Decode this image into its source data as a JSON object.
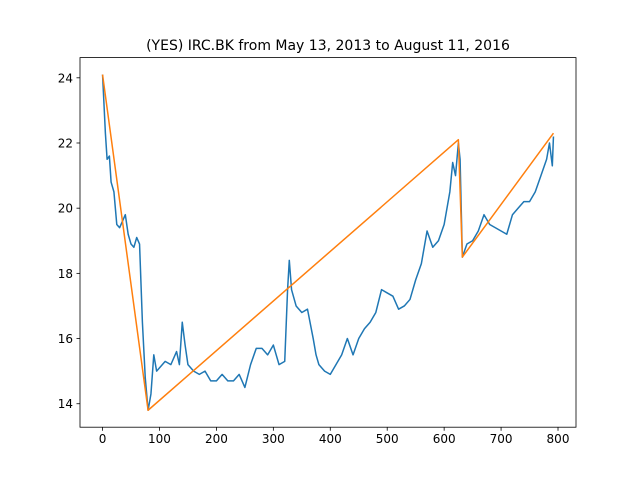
{
  "chart_data": {
    "type": "line",
    "title": "(YES) IRC.BK from May 13, 2013 to August 11, 2016",
    "xlim": [
      -39.6,
      831.6
    ],
    "ylim": [
      13.28,
      24.62
    ],
    "xticks": [
      0,
      100,
      200,
      300,
      400,
      500,
      600,
      700,
      800
    ],
    "yticks": [
      14,
      16,
      18,
      20,
      22,
      24
    ],
    "grid": false,
    "series": [
      {
        "color": "#1f77b4",
        "x": [
          0,
          5,
          8,
          12,
          15,
          20,
          25,
          30,
          35,
          40,
          45,
          50,
          55,
          60,
          65,
          70,
          75,
          80,
          85,
          90,
          95,
          100,
          110,
          120,
          130,
          135,
          140,
          145,
          150,
          160,
          170,
          180,
          190,
          200,
          210,
          220,
          230,
          240,
          250,
          260,
          270,
          280,
          290,
          300,
          310,
          320,
          325,
          328,
          332,
          340,
          350,
          360,
          370,
          375,
          380,
          390,
          400,
          410,
          420,
          430,
          440,
          450,
          460,
          470,
          480,
          490,
          500,
          510,
          520,
          530,
          540,
          550,
          560,
          570,
          580,
          590,
          600,
          610,
          615,
          620,
          625,
          628,
          632,
          640,
          650,
          660,
          670,
          680,
          690,
          700,
          710,
          720,
          730,
          740,
          750,
          760,
          770,
          780,
          785,
          790,
          792
        ],
        "values": [
          24.1,
          22.3,
          21.5,
          21.6,
          20.8,
          20.5,
          19.5,
          19.4,
          19.6,
          19.8,
          19.2,
          18.9,
          18.8,
          19.1,
          18.9,
          16.5,
          14.8,
          13.8,
          14.3,
          15.5,
          15.0,
          15.1,
          15.3,
          15.2,
          15.6,
          15.2,
          16.5,
          15.8,
          15.2,
          15.0,
          14.9,
          15.0,
          14.7,
          14.7,
          14.9,
          14.7,
          14.7,
          14.9,
          14.5,
          15.2,
          15.7,
          15.7,
          15.5,
          15.8,
          15.2,
          15.3,
          17.5,
          18.4,
          17.5,
          17.0,
          16.8,
          16.9,
          16.0,
          15.5,
          15.2,
          15.0,
          14.9,
          15.2,
          15.5,
          16.0,
          15.5,
          16.0,
          16.3,
          16.5,
          16.8,
          17.5,
          17.4,
          17.3,
          16.9,
          17.0,
          17.2,
          17.8,
          18.3,
          19.3,
          18.8,
          19.0,
          19.5,
          20.5,
          21.4,
          21.0,
          22.0,
          21.5,
          18.5,
          18.9,
          19.0,
          19.3,
          19.8,
          19.5,
          19.4,
          19.3,
          19.2,
          19.8,
          20.0,
          20.2,
          20.2,
          20.5,
          21.0,
          21.5,
          22.0,
          21.3,
          22.2
        ]
      },
      {
        "color": "#ff7f0e",
        "x": [
          0,
          80,
          625,
          632,
          792
        ],
        "values": [
          24.1,
          13.8,
          22.1,
          18.5,
          22.3
        ]
      }
    ]
  }
}
